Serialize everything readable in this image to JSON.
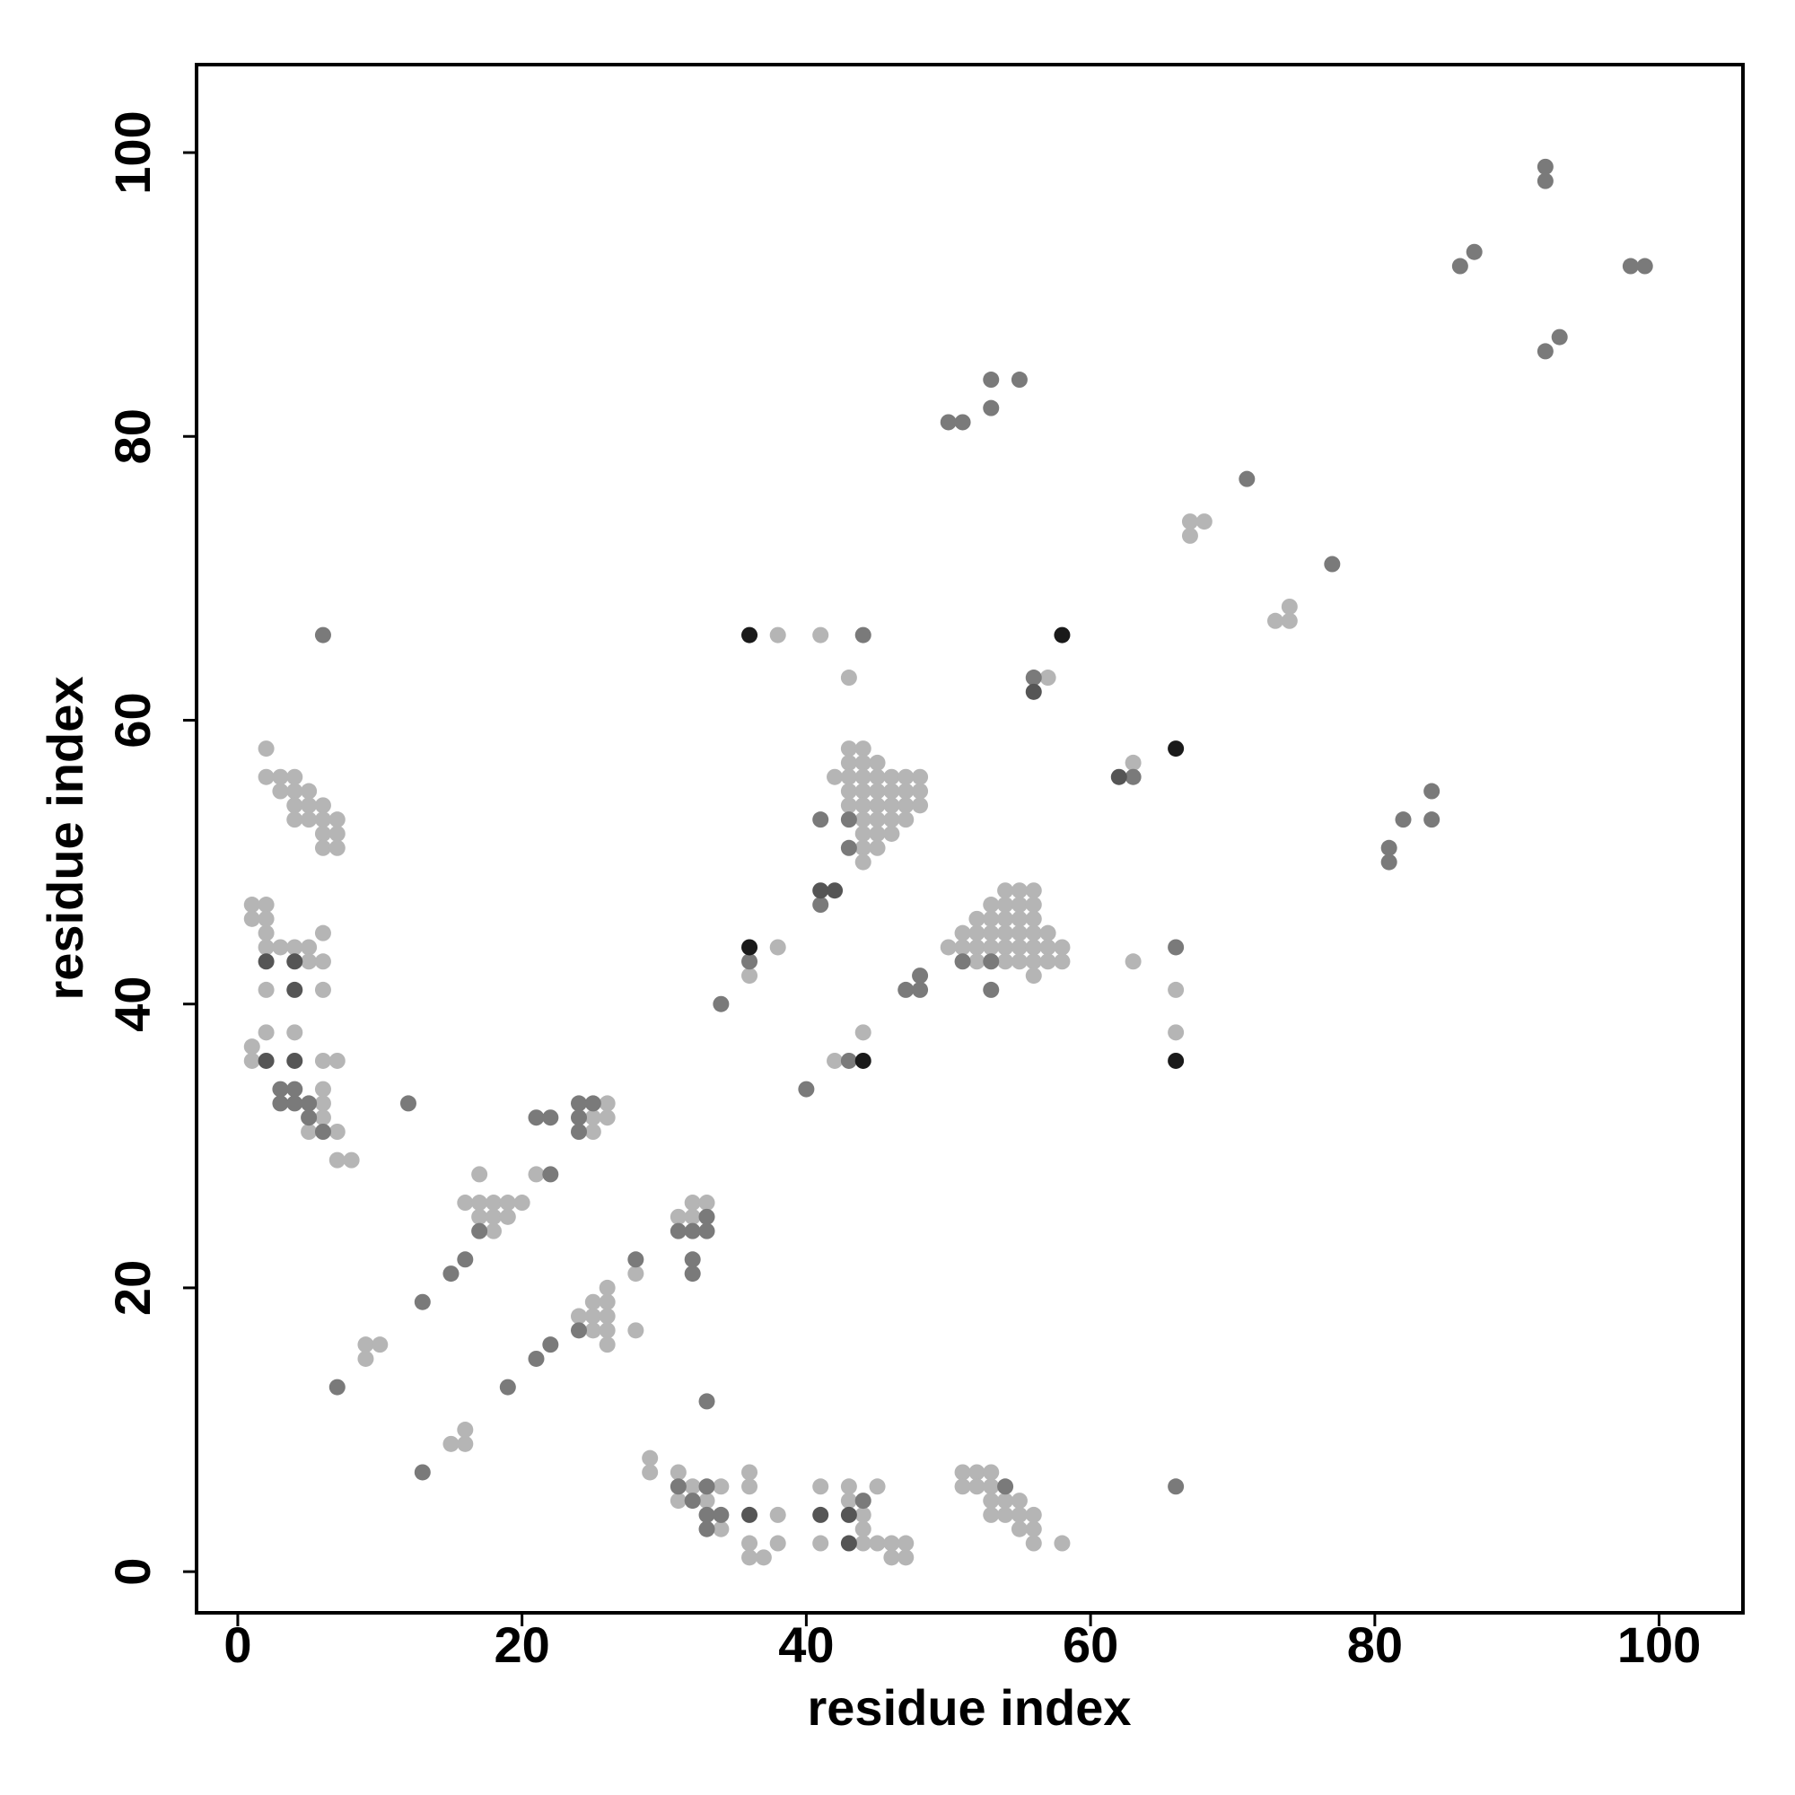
{
  "chart_data": {
    "type": "scatter",
    "xlabel": "residue index",
    "ylabel": "residue index",
    "xlim": [
      -2.9,
      105.9
    ],
    "ylim": [
      -2.9,
      106.2
    ],
    "xticks": [
      0,
      20,
      40,
      60,
      80,
      100
    ],
    "yticks": [
      0,
      20,
      40,
      60,
      80,
      100
    ],
    "series": [
      {
        "color": "#b5b5b5",
        "x": [
          67,
          68,
          67,
          73,
          74,
          74,
          38,
          41,
          43,
          57,
          63,
          2,
          2,
          3,
          3,
          4,
          4,
          4,
          5,
          5,
          4,
          5,
          6,
          6,
          6,
          7,
          7,
          6,
          7,
          1,
          2,
          1,
          2,
          2,
          2,
          3,
          4,
          5,
          6,
          5,
          6,
          2,
          6,
          2,
          4,
          1,
          1,
          6,
          7,
          6,
          6,
          6,
          5,
          7,
          7,
          8,
          9,
          10,
          9,
          15,
          16,
          16,
          16,
          17,
          18,
          19,
          20,
          17,
          18,
          19,
          18,
          17,
          21,
          26,
          25,
          26,
          25,
          24,
          25,
          26,
          25,
          26,
          26,
          25,
          26,
          26,
          28,
          28,
          31,
          32,
          33,
          32,
          29,
          29,
          31,
          32,
          34,
          31,
          33,
          34,
          36,
          36,
          38,
          36,
          38,
          36,
          37,
          41,
          41,
          43,
          45,
          43,
          44,
          44,
          44,
          45,
          46,
          46,
          47,
          47,
          51,
          52,
          53,
          51,
          52,
          53,
          53,
          54,
          55,
          53,
          54,
          55,
          56,
          55,
          56,
          56,
          58,
          36,
          38,
          42,
          44,
          43,
          44,
          43,
          44,
          45,
          42,
          43,
          44,
          45,
          46,
          47,
          48,
          43,
          44,
          45,
          46,
          47,
          48,
          43,
          44,
          45,
          46,
          47,
          48,
          44,
          45,
          46,
          47,
          44,
          45,
          46,
          44,
          45,
          44,
          54,
          55,
          56,
          53,
          54,
          55,
          56,
          52,
          53,
          54,
          55,
          56,
          51,
          52,
          53,
          54,
          55,
          56,
          57,
          50,
          51,
          52,
          53,
          54,
          55,
          56,
          57,
          58,
          52,
          54,
          55,
          56,
          57,
          58,
          56,
          63,
          66,
          66
        ],
        "values": [
          74,
          74,
          73,
          67,
          68,
          67,
          66,
          66,
          63,
          63,
          57,
          58,
          56,
          56,
          55,
          56,
          55,
          54,
          55,
          54,
          53,
          53,
          54,
          53,
          52,
          53,
          52,
          51,
          51,
          47,
          47,
          46,
          46,
          45,
          44,
          44,
          44,
          44,
          45,
          43,
          43,
          41,
          41,
          38,
          38,
          37,
          36,
          36,
          36,
          34,
          33,
          32,
          31,
          31,
          29,
          29,
          16,
          16,
          15,
          9,
          10,
          9,
          26,
          26,
          26,
          26,
          26,
          25,
          25,
          25,
          24,
          28,
          28,
          33,
          32,
          32,
          31,
          18,
          19,
          20,
          18,
          19,
          18,
          17,
          17,
          16,
          17,
          21,
          25,
          26,
          26,
          25,
          8,
          7,
          7,
          6,
          6,
          5,
          5,
          3,
          7,
          6,
          4,
          2,
          2,
          1,
          1,
          6,
          2,
          6,
          6,
          5,
          4,
          3,
          2,
          2,
          2,
          1,
          2,
          1,
          7,
          7,
          7,
          6,
          6,
          6,
          5,
          5,
          5,
          4,
          4,
          4,
          4,
          3,
          3,
          2,
          2,
          42,
          44,
          36,
          38,
          58,
          58,
          57,
          57,
          57,
          56,
          56,
          56,
          56,
          56,
          56,
          56,
          55,
          55,
          55,
          55,
          55,
          55,
          54,
          54,
          54,
          54,
          54,
          54,
          53,
          53,
          53,
          53,
          52,
          52,
          52,
          51,
          51,
          50,
          48,
          48,
          48,
          47,
          47,
          47,
          47,
          46,
          46,
          46,
          46,
          46,
          45,
          45,
          45,
          45,
          45,
          45,
          45,
          44,
          44,
          44,
          44,
          44,
          44,
          44,
          44,
          44,
          43,
          43,
          43,
          43,
          43,
          43,
          42,
          43,
          41,
          38
        ]
      },
      {
        "color": "#7a7a7a",
        "x": [
          92,
          92,
          86,
          87,
          98,
          99,
          92,
          93,
          50,
          51,
          53,
          55,
          53,
          71,
          77,
          6,
          44,
          56,
          63,
          81,
          81,
          82,
          84,
          84,
          3,
          4,
          3,
          4,
          5,
          5,
          6,
          12,
          13,
          7,
          13,
          15,
          16,
          17,
          22,
          21,
          22,
          24,
          25,
          24,
          24,
          19,
          21,
          22,
          24,
          28,
          33,
          31,
          32,
          33,
          32,
          32,
          33,
          31,
          33,
          32,
          33,
          34,
          33,
          44,
          54,
          66,
          34,
          36,
          40,
          43,
          41,
          41,
          43,
          43,
          47,
          48,
          48,
          51,
          53,
          53,
          66
        ],
        "values": [
          99,
          98,
          92,
          93,
          92,
          92,
          86,
          87,
          81,
          81,
          84,
          84,
          82,
          77,
          71,
          66,
          66,
          63,
          56,
          51,
          50,
          53,
          55,
          53,
          34,
          34,
          33,
          33,
          33,
          32,
          31,
          33,
          19,
          13,
          7,
          21,
          22,
          24,
          28,
          32,
          32,
          33,
          33,
          32,
          31,
          13,
          15,
          16,
          17,
          22,
          25,
          24,
          24,
          24,
          22,
          21,
          12,
          6,
          6,
          5,
          4,
          4,
          3,
          5,
          6,
          6,
          40,
          43,
          34,
          36,
          47,
          53,
          53,
          51,
          41,
          41,
          42,
          43,
          43,
          41,
          44
        ]
      },
      {
        "color": "#555555",
        "x": [
          56,
          62,
          2,
          4,
          4,
          2,
          4,
          36,
          41,
          43,
          43,
          41,
          42
        ],
        "values": [
          62,
          56,
          43,
          43,
          41,
          36,
          36,
          4,
          4,
          4,
          2,
          48,
          48
        ]
      },
      {
        "color": "#1a1a1a",
        "x": [
          36,
          58,
          66,
          36,
          44,
          66
        ],
        "values": [
          66,
          66,
          58,
          44,
          36,
          36
        ]
      }
    ]
  }
}
